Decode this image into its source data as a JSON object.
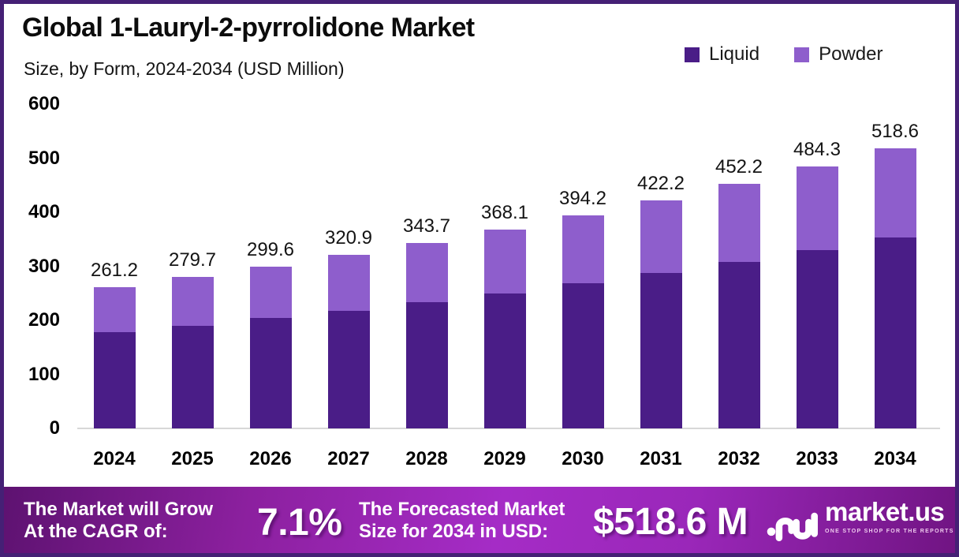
{
  "header": {
    "title": "Global 1-Lauryl-2-pyrrolidone Market",
    "subtitle": "Size, by Form, 2024-2034 (USD Million)"
  },
  "legend": [
    {
      "label": "Liquid",
      "color": "#4A1D87"
    },
    {
      "label": "Powder",
      "color": "#8E5ECC"
    }
  ],
  "colors": {
    "frame_border": "#452075",
    "background": "#ffffff",
    "axis_line": "#d8d8d8",
    "liquid": "#4A1D87",
    "powder": "#8E5ECC",
    "banner_gradient": [
      "#5d1270",
      "#a52cc6",
      "#701482"
    ]
  },
  "chart_data": {
    "type": "bar",
    "stacked": true,
    "title": "Global 1-Lauryl-2-pyrrolidone Market",
    "subtitle": "Size, by Form, 2024-2034 (USD Million)",
    "value_unit": "USD Million",
    "categories": [
      "2024",
      "2025",
      "2026",
      "2027",
      "2028",
      "2029",
      "2030",
      "2031",
      "2032",
      "2033",
      "2034"
    ],
    "series": [
      {
        "name": "Liquid",
        "color": "#4A1D87",
        "values": [
          177.6,
          190.2,
          203.7,
          218.2,
          233.7,
          250.3,
          268.1,
          287.1,
          307.5,
          329.3,
          352.6
        ]
      },
      {
        "name": "Powder",
        "color": "#8E5ECC",
        "values": [
          83.6,
          89.5,
          95.9,
          102.7,
          110.0,
          117.8,
          126.1,
          135.1,
          144.7,
          155.0,
          166.0
        ]
      }
    ],
    "totals": [
      261.2,
      279.7,
      299.6,
      320.9,
      343.7,
      368.1,
      394.2,
      422.2,
      452.2,
      484.3,
      518.6
    ],
    "total_labels": [
      "261.2",
      "279.7",
      "299.6",
      "320.9",
      "343.7",
      "368.1",
      "394.2",
      "422.2",
      "452.2",
      "484.3",
      "518.6"
    ],
    "ylim": [
      0,
      600
    ],
    "yticks": [
      0,
      100,
      200,
      300,
      400,
      500,
      600
    ],
    "grid": false,
    "legend_position": "top-right"
  },
  "banner": {
    "cagr_label": "The Market will Grow\nAt the CAGR of:",
    "cagr_value": "7.1%",
    "forecast_label": "The Forecasted Market\nSize for 2034 in USD:",
    "forecast_value": "$518.6 M",
    "logo_text": "market.us",
    "logo_tagline": "ONE STOP SHOP FOR THE REPORTS"
  }
}
